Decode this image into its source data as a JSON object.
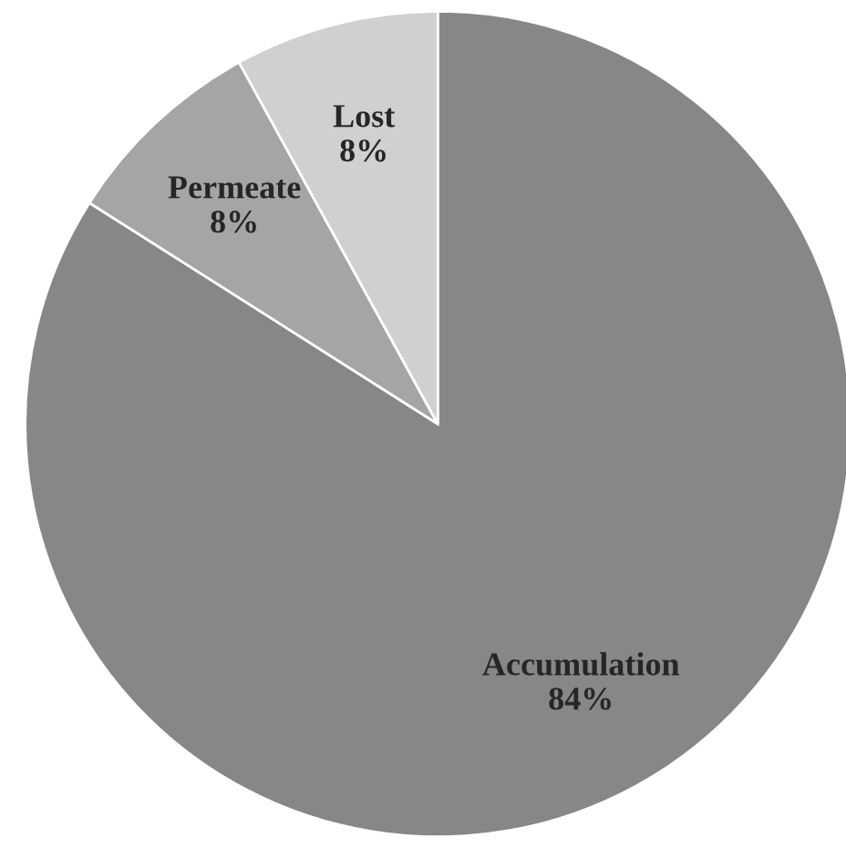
{
  "chart_data": {
    "type": "pie",
    "categories": [
      "Accumulation",
      "Permeate",
      "Lost"
    ],
    "values": [
      84,
      8,
      8
    ],
    "value_labels": [
      "84%",
      "8%",
      "8%"
    ],
    "colors": [
      "#878787",
      "#a5a5a5",
      "#d0d0d0"
    ]
  }
}
